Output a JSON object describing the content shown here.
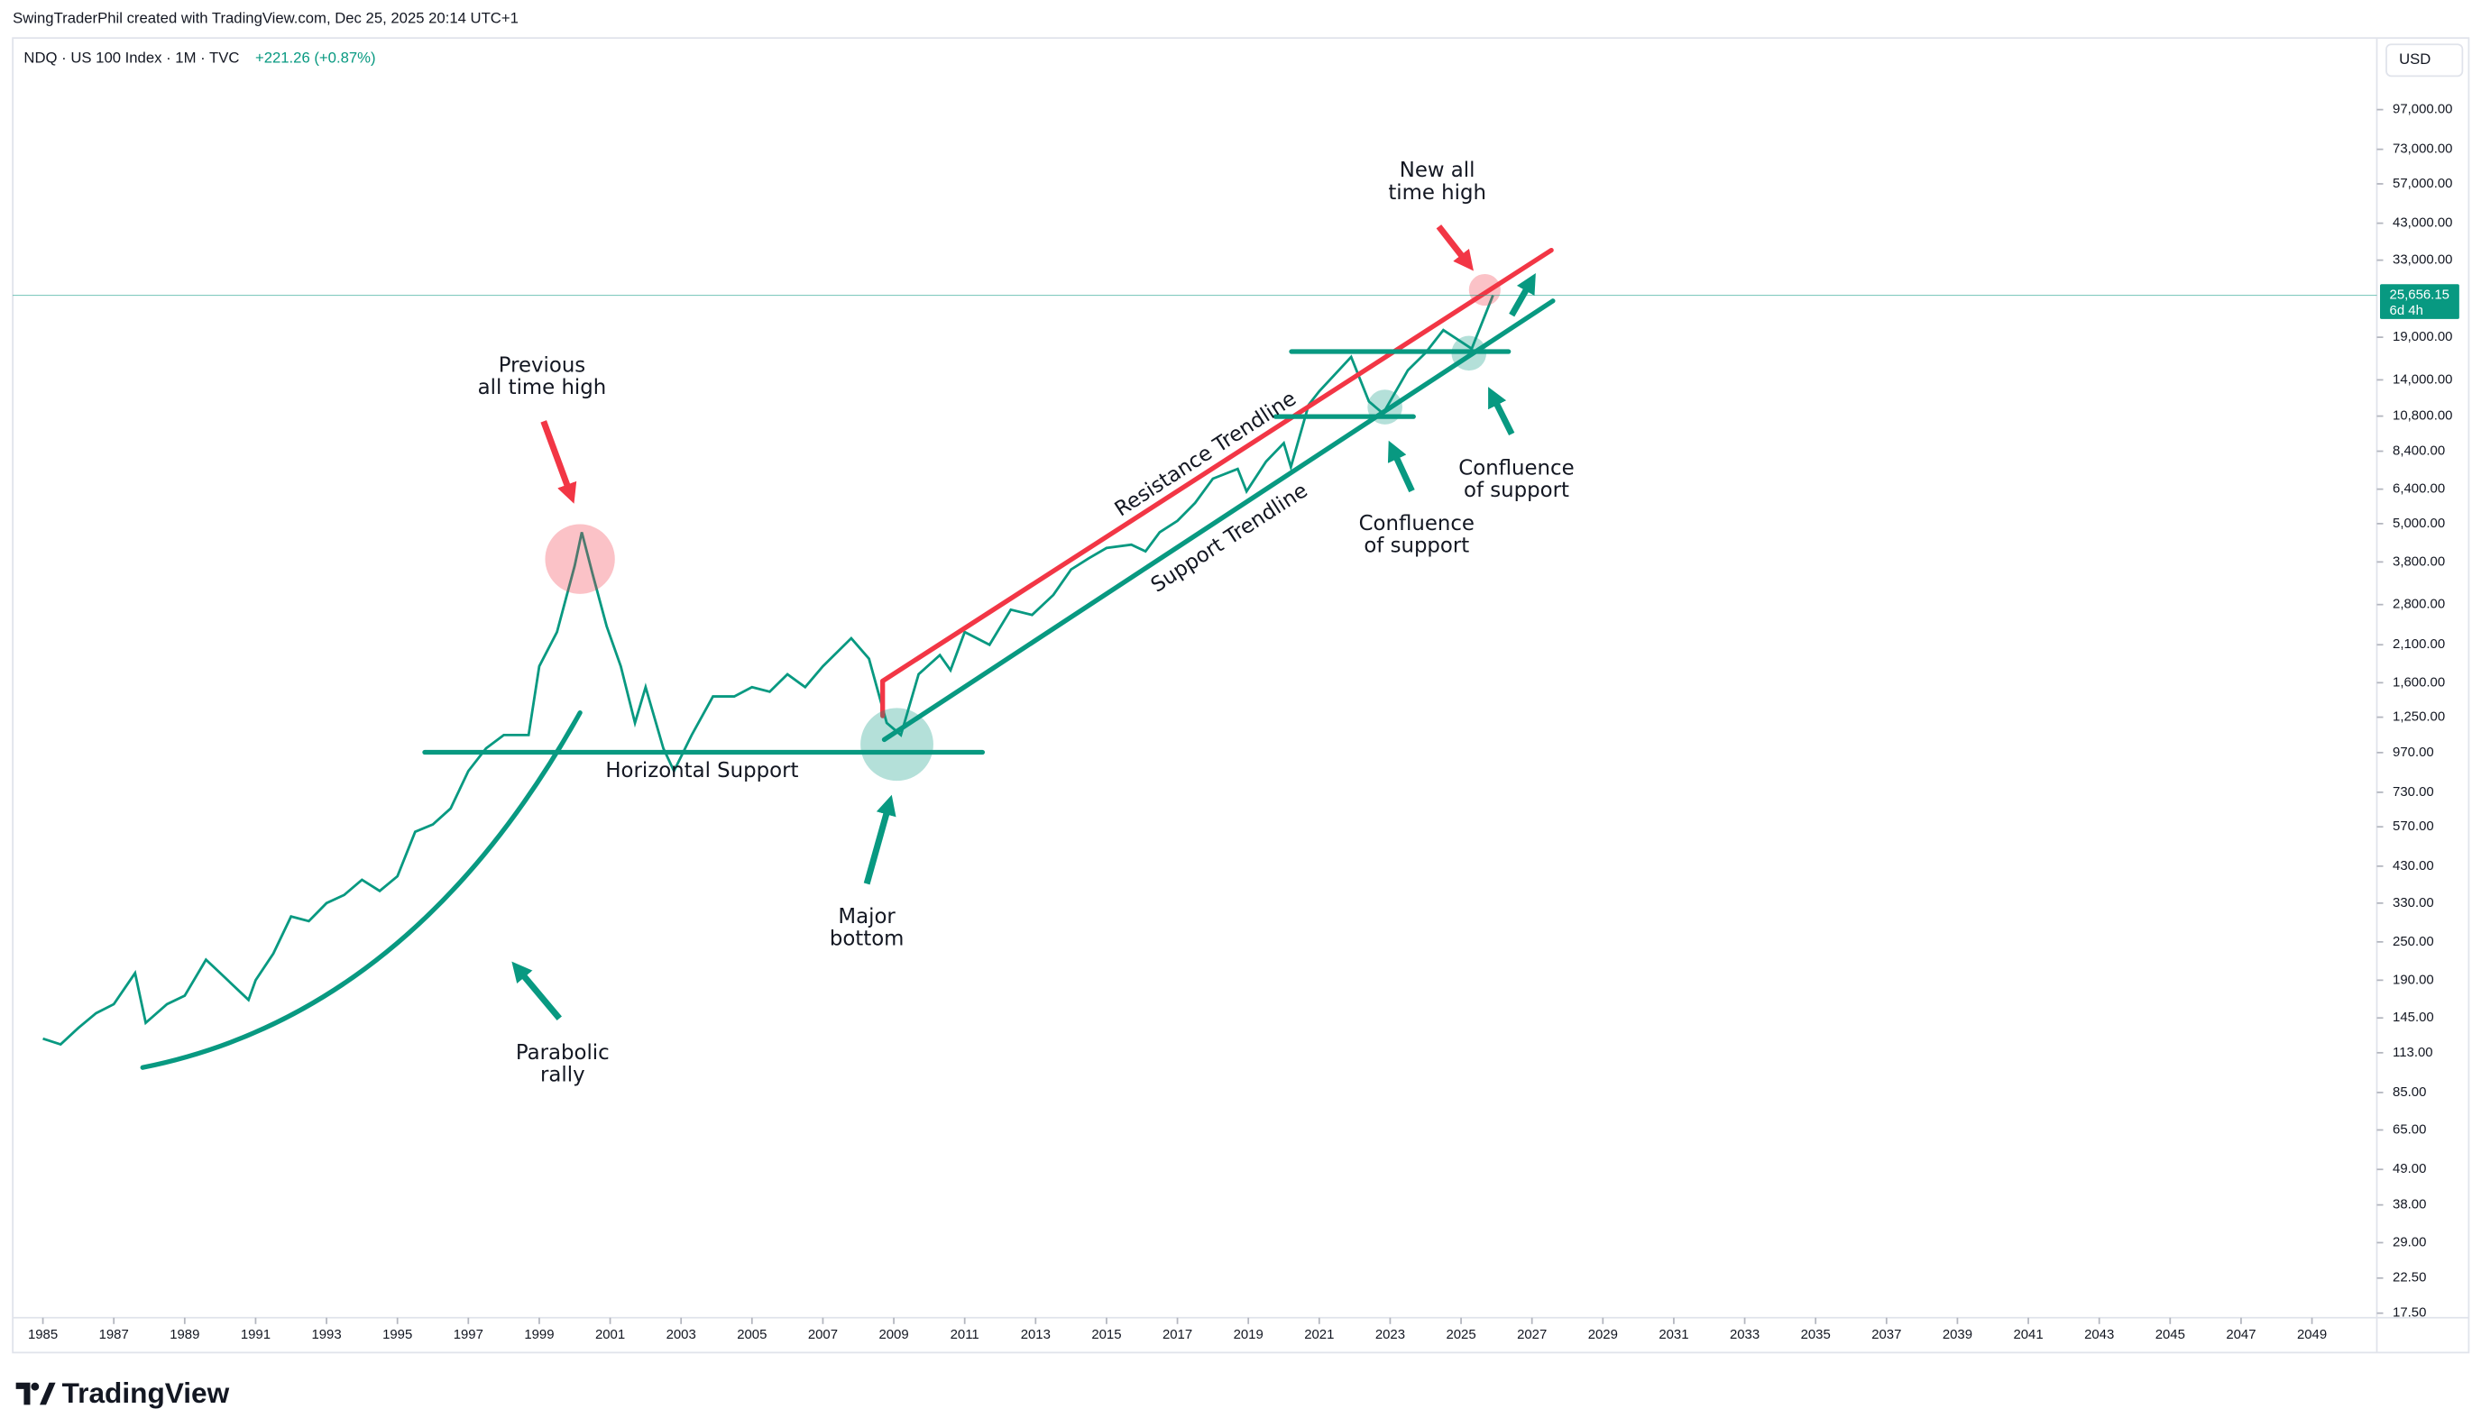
{
  "header": {
    "credit": "SwingTraderPhil created with TradingView.com, Dec 25, 2025 20:14 UTC+1",
    "symbol": "NDQ · US 100 Index · 1M · TVC",
    "change": "+221.26 (+0.87%)",
    "currency": "USD",
    "logo": "TradingView"
  },
  "chart_data": {
    "type": "line",
    "color": "#089981",
    "log_scale": true,
    "x": [
      1985.0,
      1985.5,
      1986.0,
      1986.5,
      1987.0,
      1987.6,
      1987.9,
      1988.5,
      1989.0,
      1989.6,
      1990.0,
      1990.8,
      1991.0,
      1991.5,
      1992.0,
      1992.5,
      1993.0,
      1993.5,
      1994.0,
      1994.5,
      1995.0,
      1995.5,
      1996.0,
      1996.5,
      1997.0,
      1997.5,
      1998.0,
      1998.7,
      1999.0,
      1999.5,
      2000.0,
      2000.2,
      2000.5,
      2000.9,
      2001.3,
      2001.7,
      2002.0,
      2002.5,
      2002.8,
      2003.3,
      2003.9,
      2004.5,
      2005.0,
      2005.5,
      2006.0,
      2006.5,
      2007.0,
      2007.8,
      2008.3,
      2008.8,
      2009.2,
      2009.7,
      2010.3,
      2010.6,
      2011.0,
      2011.7,
      2012.3,
      2012.9,
      2013.5,
      2014.0,
      2014.5,
      2015.0,
      2015.7,
      2016.1,
      2016.5,
      2017.0,
      2017.5,
      2018.0,
      2018.7,
      2018.95,
      2019.5,
      2020.0,
      2020.2,
      2020.7,
      2021.0,
      2021.9,
      2022.4,
      2022.8,
      2023.5,
      2024.0,
      2024.5,
      2025.3,
      2025.9
    ],
    "values": [
      125,
      120,
      135,
      150,
      160,
      200,
      140,
      160,
      170,
      220,
      200,
      165,
      190,
      230,
      300,
      290,
      330,
      350,
      390,
      360,
      400,
      550,
      580,
      650,
      850,
      1000,
      1100,
      1100,
      1800,
      2300,
      3700,
      4700,
      3500,
      2400,
      1800,
      1200,
      1550,
      1000,
      850,
      1100,
      1450,
      1450,
      1550,
      1500,
      1700,
      1550,
      1800,
      2200,
      1900,
      1200,
      1100,
      1700,
      1950,
      1750,
      2300,
      2100,
      2700,
      2600,
      3000,
      3600,
      3900,
      4200,
      4300,
      4100,
      4700,
      5100,
      5800,
      6900,
      7400,
      6300,
      7800,
      8900,
      7500,
      11700,
      12900,
      16500,
      12000,
      11000,
      15000,
      17000,
      20000,
      17500,
      25656.15
    ],
    "last_price": {
      "value": 25656.15,
      "label": "25,656.15"
    },
    "countdown": "6d 4h",
    "xlim": [
      1984.15,
      2050.83
    ],
    "xticks": [
      1985,
      1987,
      1989,
      1991,
      1993,
      1995,
      1997,
      1999,
      2001,
      2003,
      2005,
      2007,
      2009,
      2011,
      2013,
      2015,
      2017,
      2019,
      2021,
      2023,
      2025,
      2027,
      2029,
      2031,
      2033,
      2035,
      2037,
      2039,
      2041,
      2043,
      2045,
      2047,
      2049
    ],
    "ylim": [
      13.5,
      162000
    ],
    "yticks": [
      {
        "value": 17.5,
        "label": "17.50"
      },
      {
        "value": 22.5,
        "label": "22.50"
      },
      {
        "value": 29,
        "label": "29.00"
      },
      {
        "value": 38,
        "label": "38.00"
      },
      {
        "value": 49,
        "label": "49.00"
      },
      {
        "value": 65,
        "label": "65.00"
      },
      {
        "value": 85,
        "label": "85.00"
      },
      {
        "value": 113,
        "label": "113.00"
      },
      {
        "value": 145,
        "label": "145.00"
      },
      {
        "value": 190,
        "label": "190.00"
      },
      {
        "value": 250,
        "label": "250.00"
      },
      {
        "value": 330,
        "label": "330.00"
      },
      {
        "value": 430,
        "label": "430.00"
      },
      {
        "value": 570,
        "label": "570.00"
      },
      {
        "value": 730,
        "label": "730.00"
      },
      {
        "value": 970,
        "label": "970.00"
      },
      {
        "value": 1250,
        "label": "1,250.00"
      },
      {
        "value": 1600,
        "label": "1,600.00"
      },
      {
        "value": 2100,
        "label": "2,100.00"
      },
      {
        "value": 2800,
        "label": "2,800.00"
      },
      {
        "value": 3800,
        "label": "3,800.00"
      },
      {
        "value": 5000,
        "label": "5,000.00"
      },
      {
        "value": 6400,
        "label": "6,400.00"
      },
      {
        "value": 8400,
        "label": "8,400.00"
      },
      {
        "value": 10800,
        "label": "10,800.00"
      },
      {
        "value": 14000,
        "label": "14,000.00"
      },
      {
        "value": 19000,
        "label": "19,000.00"
      },
      {
        "value": 33000,
        "label": "33,000.00"
      },
      {
        "value": 43000,
        "label": "43,000.00"
      },
      {
        "value": 57000,
        "label": "57,000.00"
      },
      {
        "value": 73000,
        "label": "73,000.00"
      },
      {
        "value": 97000,
        "label": "97,000.00"
      }
    ],
    "annotations": {
      "prev_high": [
        "Previous",
        "all time high"
      ],
      "new_high": [
        "New all",
        "time high"
      ],
      "parabolic": [
        "Parabolic",
        "rally"
      ],
      "major_bottom": [
        "Major",
        "bottom"
      ],
      "confluence_1": [
        "Confluence",
        "of support"
      ],
      "confluence_2": [
        "Confluence",
        "of support"
      ],
      "horizontal": "Horizontal Support",
      "resistance": "Resistance Trendline",
      "support": "Support Trendline"
    }
  }
}
